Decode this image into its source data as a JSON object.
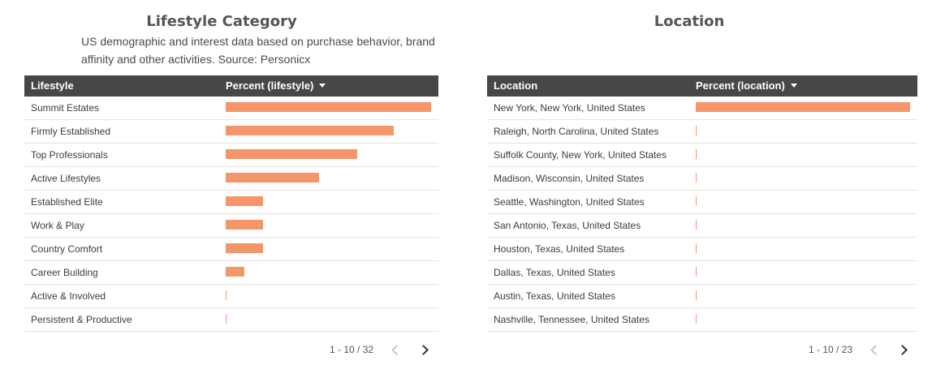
{
  "lifestyle": {
    "title": "Lifestyle Category",
    "description": "US demographic and interest data based on purchase behavior, brand affinity and other activities. Source: Personicx",
    "columns": {
      "name": "Lifestyle",
      "percent": "Percent (lifestyle)"
    },
    "sort_icon": "sort-descending-icon",
    "bar_color": "#f4956a",
    "rows": [
      {
        "label": "Summit Estates",
        "percent": 1.0
      },
      {
        "label": "Firmly Established",
        "percent": 0.82
      },
      {
        "label": "Top Professionals",
        "percent": 0.64
      },
      {
        "label": "Active Lifestyles",
        "percent": 0.455
      },
      {
        "label": "Established Elite",
        "percent": 0.18
      },
      {
        "label": "Work & Play",
        "percent": 0.18
      },
      {
        "label": "Country Comfort",
        "percent": 0.18
      },
      {
        "label": "Career Building",
        "percent": 0.09
      },
      {
        "label": "Active & Involved",
        "percent": 0.0
      },
      {
        "label": "Persistent & Productive",
        "percent": 0.0
      }
    ],
    "pager": {
      "text": "1 - 10 / 32",
      "prev_icon": "chevron-left-icon",
      "next_icon": "chevron-right-icon"
    }
  },
  "location": {
    "title": "Location",
    "columns": {
      "name": "Location",
      "percent": "Percent (location)"
    },
    "sort_icon": "sort-descending-icon",
    "bar_color": "#f4956a",
    "rows": [
      {
        "label": "New York, New York, United States",
        "percent": 1.0
      },
      {
        "label": "Raleigh, North Carolina, United States",
        "percent": 0.0
      },
      {
        "label": "Suffolk County, New York, United States",
        "percent": 0.0
      },
      {
        "label": "Madison, Wisconsin, United States",
        "percent": 0.0
      },
      {
        "label": "Seattle, Washington, United States",
        "percent": 0.0
      },
      {
        "label": "San Antonio, Texas, United States",
        "percent": 0.0
      },
      {
        "label": "Houston, Texas, United States",
        "percent": 0.0
      },
      {
        "label": "Dallas, Texas, United States",
        "percent": 0.0
      },
      {
        "label": "Austin, Texas, United States",
        "percent": 0.0
      },
      {
        "label": "Nashville, Tennessee, United States",
        "percent": 0.0
      }
    ],
    "pager": {
      "text": "1 - 10 / 23",
      "prev_icon": "chevron-left-icon",
      "next_icon": "chevron-right-icon"
    }
  }
}
